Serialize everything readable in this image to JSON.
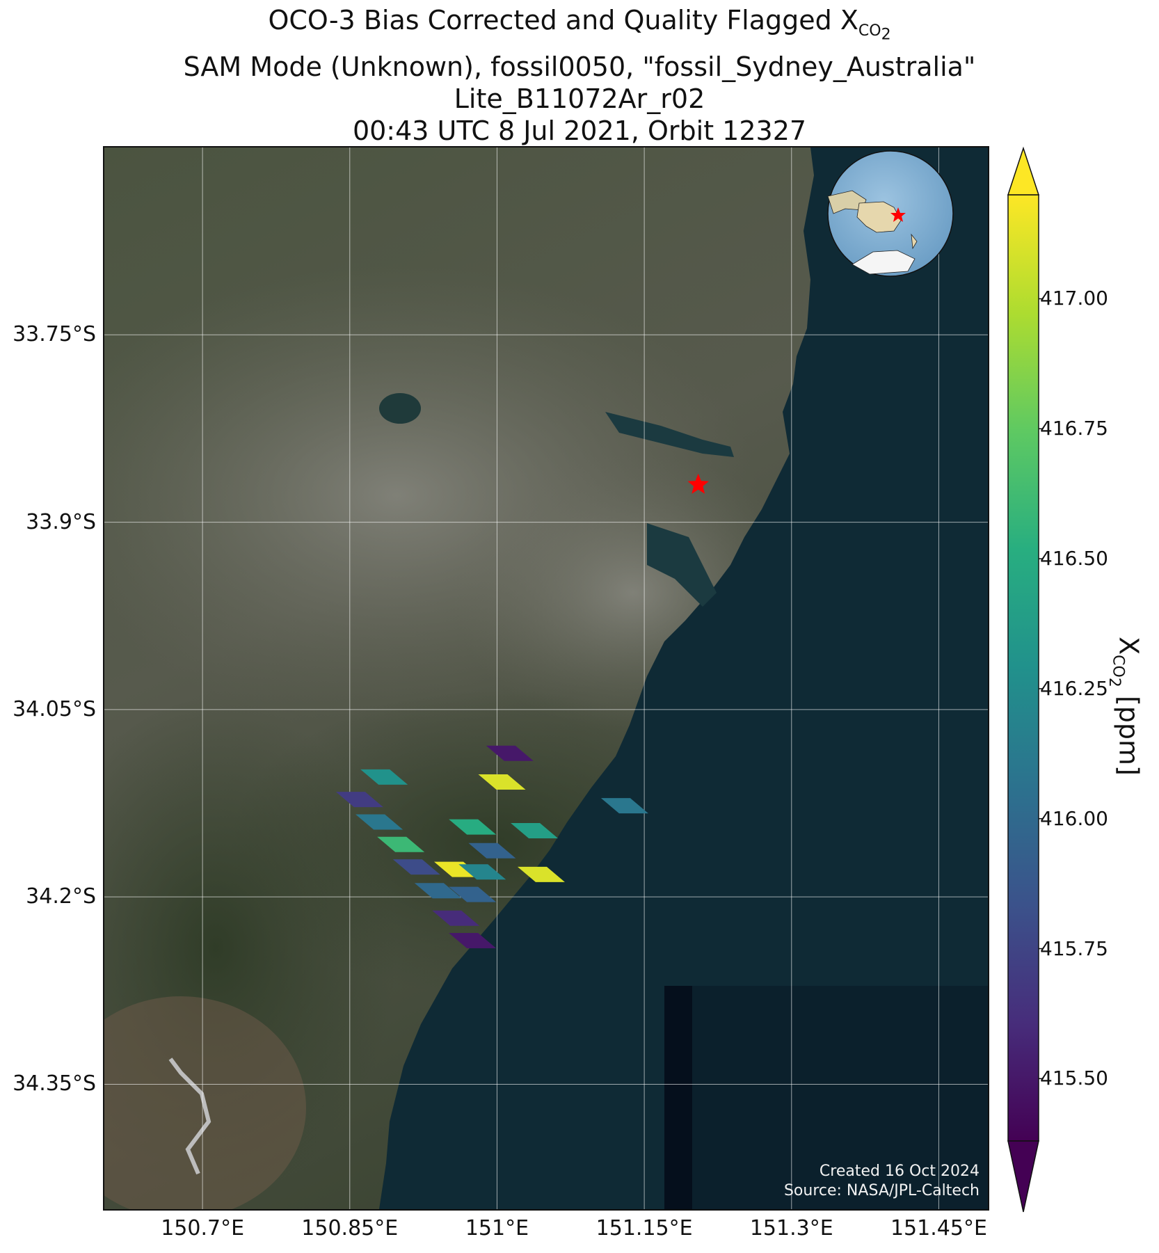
{
  "title": {
    "line1_prefix": "OCO-3 Bias Corrected and Quality Flagged X",
    "line1_sub": "CO",
    "line1_subsub": "2",
    "line2": "SAM Mode (Unknown), fossil0050, \"fossil_Sydney_Australia\"",
    "line3": "Lite_B11072Ar_r02",
    "line4": "00:43 UTC 8 Jul 2021, Orbit 12327"
  },
  "axes": {
    "x_ticks": [
      "150.7°E",
      "150.85°E",
      "151°E",
      "151.15°E",
      "151.3°E",
      "151.45°E"
    ],
    "x_tick_values": [
      150.7,
      150.85,
      151.0,
      151.15,
      151.3,
      151.45
    ],
    "y_ticks": [
      "33.75°S",
      "33.9°S",
      "34.05°S",
      "34.2°S",
      "34.35°S"
    ],
    "y_tick_values": [
      -33.75,
      -33.9,
      -34.05,
      -34.2,
      -34.35
    ],
    "lon_range": [
      150.6,
      151.5
    ],
    "lat_range": [
      -34.45,
      -33.6
    ]
  },
  "colorbar": {
    "label_prefix": "X",
    "label_sub": "CO",
    "label_subsub": "2",
    "label_suffix": " [ppm]",
    "ticks": [
      "417.00",
      "416.75",
      "416.50",
      "416.25",
      "416.00",
      "415.75",
      "415.50"
    ],
    "tick_values": [
      417.0,
      416.75,
      416.5,
      416.25,
      416.0,
      415.75,
      415.5
    ],
    "range": [
      415.38,
      417.2
    ],
    "colormap": "viridis",
    "extend": "both"
  },
  "credit": {
    "line1": "Created 16 Oct 2024",
    "line2": "Source: NASA/JPL-Caltech"
  },
  "site_marker": {
    "lon": 151.205,
    "lat": -33.87,
    "color": "#ff0000",
    "icon": "star-icon"
  },
  "soundings": [
    {
      "lon": 151.013,
      "lat": -34.085,
      "xco2": 415.5
    },
    {
      "lon": 150.885,
      "lat": -34.104,
      "xco2": 416.3
    },
    {
      "lon": 151.005,
      "lat": -34.108,
      "xco2": 417.1
    },
    {
      "lon": 150.86,
      "lat": -34.122,
      "xco2": 415.7
    },
    {
      "lon": 151.13,
      "lat": -34.127,
      "xco2": 416.1
    },
    {
      "lon": 150.88,
      "lat": -34.14,
      "xco2": 416.1
    },
    {
      "lon": 150.975,
      "lat": -34.144,
      "xco2": 416.5
    },
    {
      "lon": 151.038,
      "lat": -34.147,
      "xco2": 416.4
    },
    {
      "lon": 150.902,
      "lat": -34.158,
      "xco2": 416.6
    },
    {
      "lon": 150.995,
      "lat": -34.163,
      "xco2": 415.95
    },
    {
      "lon": 150.918,
      "lat": -34.176,
      "xco2": 415.8
    },
    {
      "lon": 150.96,
      "lat": -34.178,
      "xco2": 417.15
    },
    {
      "lon": 150.985,
      "lat": -34.18,
      "xco2": 416.2
    },
    {
      "lon": 151.045,
      "lat": -34.182,
      "xco2": 417.1
    },
    {
      "lon": 150.94,
      "lat": -34.195,
      "xco2": 416.0
    },
    {
      "lon": 150.975,
      "lat": -34.198,
      "xco2": 415.95
    },
    {
      "lon": 150.958,
      "lat": -34.217,
      "xco2": 415.6
    },
    {
      "lon": 150.975,
      "lat": -34.235,
      "xco2": 415.5
    }
  ]
}
